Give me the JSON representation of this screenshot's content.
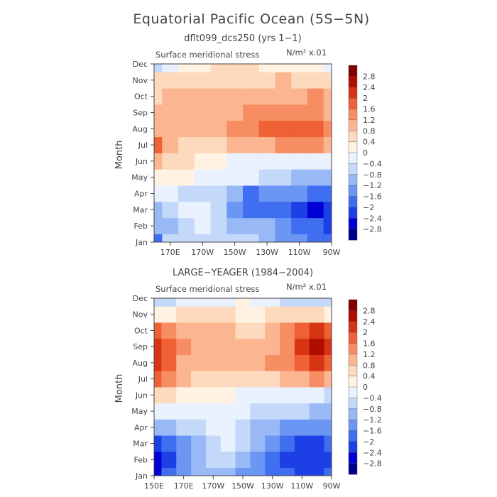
{
  "figure_title": "Equatorial Pacific Ocean (5S−5N)",
  "chart_data": [
    {
      "type": "heatmap",
      "title": "dflt099_dcs250 (yrs 1−1)",
      "subtitle": "Surface meridional stress",
      "units": "N/m² x.01",
      "ylabel": "Month",
      "xlabel": "",
      "x_ticks": [
        "170E",
        "170W",
        "150W",
        "130W",
        "110W",
        "90W"
      ],
      "x_range": [
        "160E",
        "90W"
      ],
      "y_ticks": [
        "Jan",
        "Feb",
        "Mar",
        "Apr",
        "May",
        "Jun",
        "Jul",
        "Aug",
        "Sep",
        "Oct",
        "Nov",
        "Dec"
      ],
      "x_lon": [
        160,
        170,
        180,
        190,
        200,
        210,
        220,
        230,
        240,
        250,
        260,
        270
      ],
      "values": [
        [
          -1.8,
          -0.8,
          -0.6,
          -0.6,
          -0.6,
          -0.6,
          -0.8,
          -1.2,
          -1.6,
          -1.6,
          -1.8,
          -1.8
        ],
        [
          -1.2,
          -1.0,
          -0.6,
          -0.4,
          -0.8,
          -1.2,
          -1.2,
          -1.2,
          -1.6,
          -2.0,
          -2.0,
          -2.2
        ],
        [
          -1.0,
          -0.6,
          -0.4,
          -0.4,
          -0.8,
          -1.6,
          -1.8,
          -2.0,
          -2.0,
          -2.2,
          -2.6,
          -2.4
        ],
        [
          -0.4,
          -0.4,
          -0.6,
          -0.6,
          -0.8,
          -1.2,
          -1.8,
          -1.6,
          -1.6,
          -1.6,
          -1.8,
          -2.0
        ],
        [
          0.0,
          0.2,
          0.0,
          -0.2,
          -0.4,
          -0.4,
          -0.4,
          -0.6,
          -0.8,
          -1.0,
          -1.2,
          -1.2
        ],
        [
          0.8,
          0.4,
          0.4,
          0.2,
          0.0,
          -0.2,
          -0.2,
          -0.2,
          -0.2,
          -0.4,
          -0.4,
          -0.4
        ],
        [
          1.6,
          0.8,
          0.6,
          0.6,
          0.6,
          0.8,
          0.8,
          1.0,
          1.2,
          1.2,
          1.4,
          1.0
        ],
        [
          1.0,
          0.8,
          0.8,
          0.8,
          0.8,
          1.2,
          1.4,
          1.6,
          1.6,
          1.6,
          1.8,
          1.2
        ],
        [
          0.8,
          0.8,
          0.8,
          0.8,
          0.8,
          1.0,
          1.4,
          1.4,
          1.4,
          1.2,
          1.4,
          1.0
        ],
        [
          0.6,
          0.8,
          0.8,
          0.8,
          0.8,
          0.8,
          1.0,
          1.0,
          1.0,
          1.0,
          1.2,
          0.8
        ],
        [
          0.4,
          0.6,
          0.6,
          0.6,
          0.6,
          0.6,
          0.6,
          0.6,
          0.8,
          0.6,
          0.6,
          0.4
        ],
        [
          -0.6,
          -0.2,
          0.2,
          0.2,
          0.4,
          0.4,
          0.4,
          0.2,
          0.2,
          0.2,
          0.2,
          -0.2
        ]
      ],
      "colorbar_levels": [
        "2.8",
        "2.4",
        "2",
        "1.6",
        "1.2",
        "0.8",
        "0.4",
        "0",
        "−0.4",
        "−0.8",
        "−1.2",
        "−1.6",
        "−2",
        "−2.4",
        "−2.8"
      ]
    },
    {
      "type": "heatmap",
      "title": "LARGE−YEAGER (1984−2004)",
      "subtitle": "Surface meridional stress",
      "units": "N/m² x.01",
      "ylabel": "Month",
      "xlabel": "",
      "x_ticks": [
        "150E",
        "170E",
        "170W",
        "150W",
        "130W",
        "110W",
        "90W"
      ],
      "x_range": [
        "150E",
        "90W"
      ],
      "y_ticks": [
        "Jan",
        "Feb",
        "Mar",
        "Apr",
        "May",
        "Jun",
        "Jul",
        "Aug",
        "Sep",
        "Oct",
        "Nov",
        "Dec"
      ],
      "x_lon": [
        150,
        160,
        170,
        180,
        190,
        200,
        210,
        220,
        230,
        240,
        250,
        260,
        270
      ],
      "values": [
        [
          -2.6,
          -2.0,
          -1.6,
          -1.2,
          -1.0,
          -1.2,
          -1.4,
          -1.6,
          -1.8,
          -2.0,
          -2.2,
          -2.2,
          -2.0
        ],
        [
          -2.6,
          -2.2,
          -1.6,
          -1.2,
          -0.8,
          -0.6,
          -1.0,
          -1.4,
          -1.8,
          -2.2,
          -2.2,
          -2.4,
          -2.2
        ],
        [
          -2.2,
          -1.8,
          -1.4,
          -1.0,
          -0.6,
          -0.4,
          -0.8,
          -1.2,
          -1.6,
          -2.0,
          -2.2,
          -2.4,
          -2.0
        ],
        [
          -1.2,
          -1.0,
          -0.8,
          -0.6,
          -0.4,
          -0.4,
          -0.6,
          -1.0,
          -1.2,
          -1.4,
          -1.4,
          -1.6,
          -1.6
        ],
        [
          -0.2,
          -0.2,
          -0.4,
          -0.4,
          -0.2,
          -0.2,
          -0.4,
          -0.6,
          -0.8,
          -0.8,
          -0.8,
          -1.0,
          -1.2
        ],
        [
          0.4,
          0.4,
          0.2,
          0.2,
          0.2,
          0.0,
          -0.2,
          -0.2,
          -0.2,
          -0.2,
          -0.2,
          -0.4,
          -0.6
        ],
        [
          1.6,
          1.2,
          0.8,
          0.6,
          0.6,
          0.6,
          0.6,
          0.6,
          0.6,
          0.8,
          1.0,
          1.2,
          0.8
        ],
        [
          2.4,
          1.6,
          1.0,
          0.8,
          0.8,
          1.0,
          1.0,
          1.0,
          1.2,
          1.4,
          1.8,
          2.0,
          1.6
        ],
        [
          2.2,
          1.6,
          1.2,
          1.0,
          0.8,
          1.0,
          1.0,
          1.0,
          1.0,
          1.4,
          2.2,
          2.6,
          2.0
        ],
        [
          1.6,
          1.2,
          1.0,
          0.8,
          0.8,
          0.8,
          0.6,
          0.6,
          0.8,
          1.2,
          1.8,
          2.2,
          1.6
        ],
        [
          0.0,
          0.2,
          0.4,
          0.4,
          0.4,
          0.4,
          0.2,
          0.2,
          0.4,
          0.4,
          0.6,
          0.6,
          0.2
        ],
        [
          -0.8,
          -0.6,
          -0.4,
          -0.2,
          -0.2,
          -0.2,
          0.0,
          -0.2,
          -0.4,
          -0.6,
          -0.6,
          -0.6,
          -0.6
        ]
      ],
      "colorbar_levels": [
        "2.8",
        "2.4",
        "2",
        "1.6",
        "1.2",
        "0.8",
        "0.4",
        "0",
        "−0.4",
        "−0.8",
        "−1.2",
        "−1.6",
        "−2",
        "−2.4",
        "−2.8"
      ]
    }
  ],
  "colors": {
    "scale": [
      "#00008b",
      "#0000d4",
      "#1c40e6",
      "#3f6ef0",
      "#6b96f4",
      "#98b8f6",
      "#c4d8fa",
      "#e8f1fd",
      "#fff2e2",
      "#fdd9bd",
      "#fbb691",
      "#f78d62",
      "#ee6134",
      "#d63414",
      "#b00d02",
      "#820000"
    ]
  }
}
